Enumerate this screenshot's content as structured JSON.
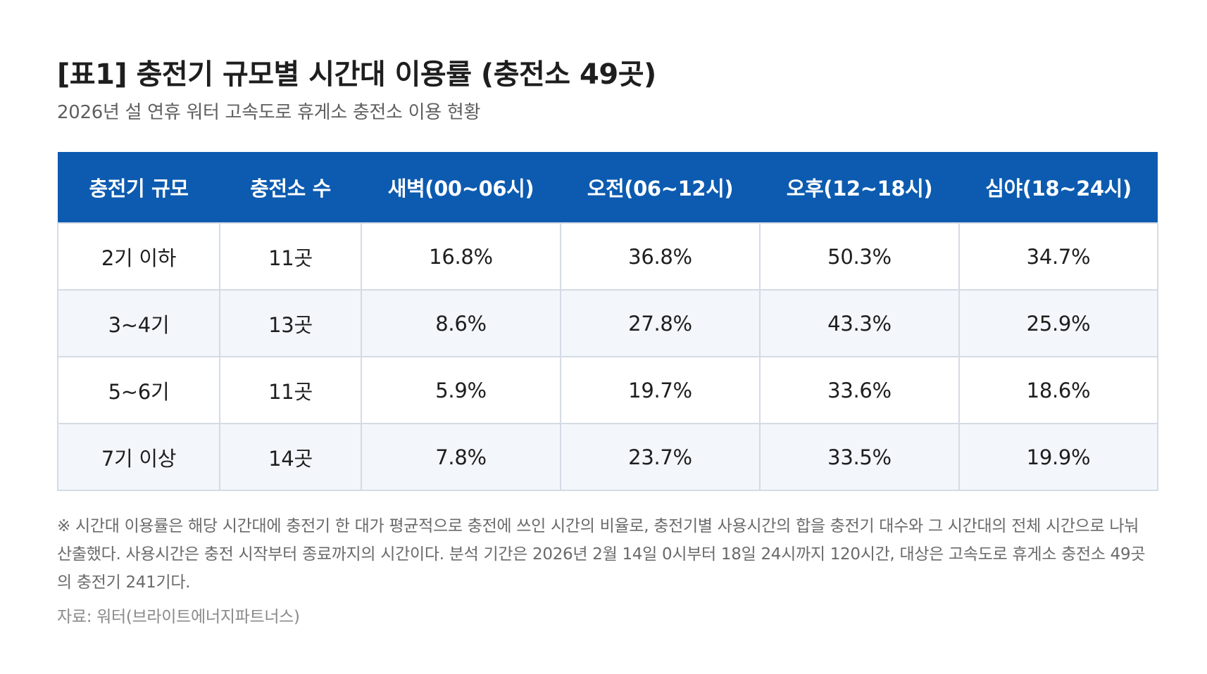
{
  "title": "[표1] 충전기 규모별 시간대 이용률 (충전소 49곳)",
  "subtitle": "2026년 설 연휴 워터 고속도로 휴게소 충전소 이용 현황",
  "colors": {
    "header_bg": "#0c5bb0",
    "header_text": "#ffffff",
    "alt_row_bg": "#f3f6fb",
    "border": "#d5dbe5"
  },
  "table": {
    "headers": [
      "충전기 규모",
      "충전소 수",
      "새벽(00~06시)",
      "오전(06~12시)",
      "오후(12~18시)",
      "심야(18~24시)"
    ],
    "rows": [
      [
        "2기 이하",
        "11곳",
        "16.8%",
        "36.8%",
        "50.3%",
        "34.7%"
      ],
      [
        "3~4기",
        "13곳",
        "8.6%",
        "27.8%",
        "43.3%",
        "25.9%"
      ],
      [
        "5~6기",
        "11곳",
        "5.9%",
        "19.7%",
        "33.6%",
        "18.6%"
      ],
      [
        "7기 이상",
        "14곳",
        "7.8%",
        "23.7%",
        "33.5%",
        "19.9%"
      ]
    ]
  },
  "note": "※ 시간대 이용률은 해당 시간대에 충전기 한 대가 평균적으로 충전에 쓰인 시간의 비율로, 충전기별 사용시간의 합을 충전기 대수와 그 시간대의 전체 시간으로 나눠 산출했다. 사용시간은 충전 시작부터 종료까지의 시간이다. 분석 기간은 2026년 2월 14일 0시부터 18일 24시까지 120시간, 대상은 고속도로 휴게소 충전소 49곳의 충전기 241기다.",
  "source": "자료: 워터(브라이트에너지파트너스)"
}
